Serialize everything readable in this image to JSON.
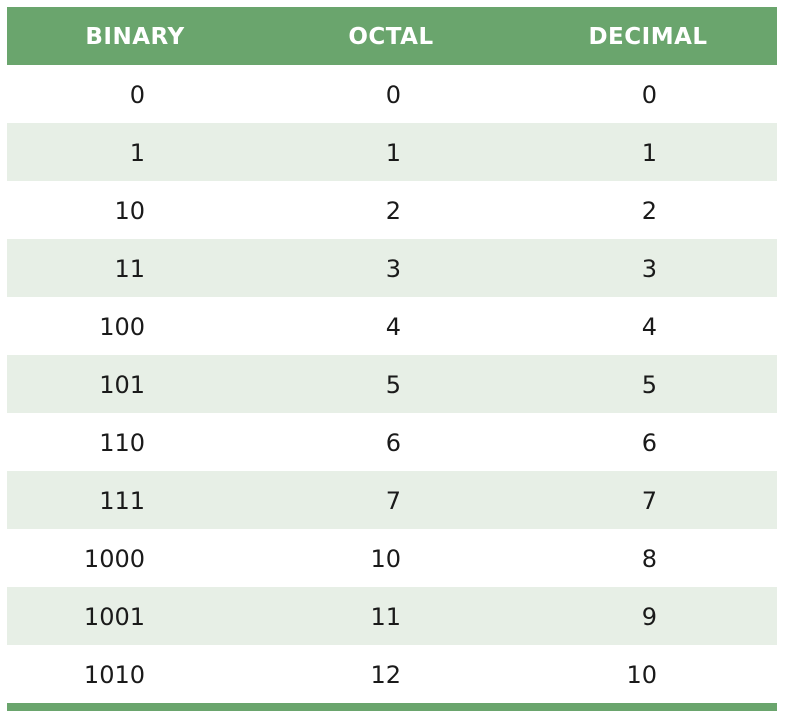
{
  "headers": {
    "binary": "BINARY",
    "octal": "OCTAL",
    "decimal": "DECIMAL"
  },
  "rows": [
    {
      "binary": "0",
      "octal": "0",
      "decimal": "0"
    },
    {
      "binary": "1",
      "octal": "1",
      "decimal": "1"
    },
    {
      "binary": "10",
      "octal": "2",
      "decimal": "2"
    },
    {
      "binary": "11",
      "octal": "3",
      "decimal": "3"
    },
    {
      "binary": "100",
      "octal": "4",
      "decimal": "4"
    },
    {
      "binary": "101",
      "octal": "5",
      "decimal": "5"
    },
    {
      "binary": "110",
      "octal": "6",
      "decimal": "6"
    },
    {
      "binary": "111",
      "octal": "7",
      "decimal": "7"
    },
    {
      "binary": "1000",
      "octal": "10",
      "decimal": "8"
    },
    {
      "binary": "1001",
      "octal": "11",
      "decimal": "9"
    },
    {
      "binary": "1010",
      "octal": "12",
      "decimal": "10"
    }
  ],
  "colors": {
    "header_bg": "#6aa56d",
    "header_text": "#ffffff",
    "stripe_bg": "#e7efe6",
    "body_text": "#1a1a1a"
  }
}
